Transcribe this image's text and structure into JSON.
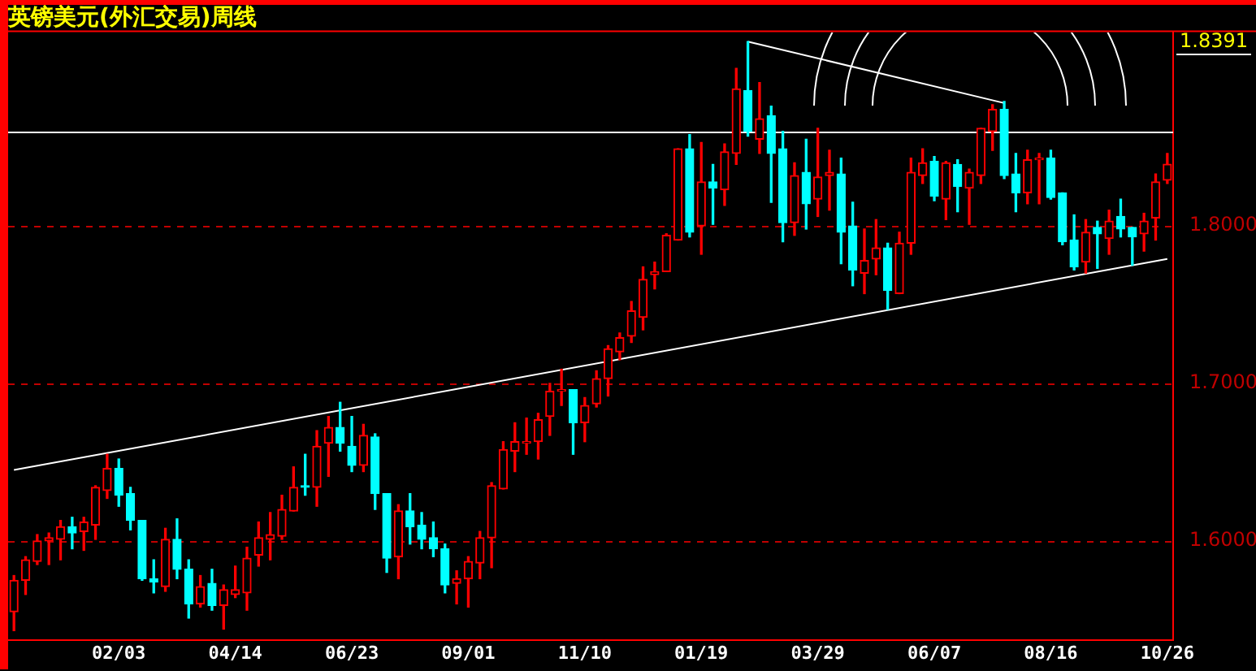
{
  "chart_data": {
    "type": "candlestick",
    "title": "英镑美元(外汇交易)周线",
    "categories": [
      null,
      null,
      null,
      null,
      null,
      null,
      null,
      null,
      null,
      "02/03",
      null,
      null,
      null,
      null,
      null,
      null,
      null,
      null,
      null,
      "04/14",
      null,
      null,
      null,
      null,
      null,
      null,
      null,
      null,
      null,
      "06/23",
      null,
      null,
      null,
      null,
      null,
      null,
      null,
      null,
      null,
      "09/01",
      null,
      null,
      null,
      null,
      null,
      null,
      null,
      null,
      null,
      "11/10",
      null,
      null,
      null,
      null,
      null,
      null,
      null,
      null,
      null,
      "01/19",
      null,
      null,
      null,
      null,
      null,
      null,
      null,
      null,
      null,
      "03/29",
      null,
      null,
      null,
      null,
      null,
      null,
      null,
      null,
      null,
      "06/07",
      null,
      null,
      null,
      null,
      null,
      null,
      null,
      null,
      null,
      "08/16",
      null,
      null,
      null,
      null,
      null,
      null,
      null,
      null,
      null,
      "10/26"
    ],
    "ohlc": [
      [
        1.555,
        1.578,
        1.543,
        1.575
      ],
      [
        1.575,
        1.59,
        1.566,
        1.588
      ],
      [
        1.587,
        1.604,
        1.585,
        1.6
      ],
      [
        1.6,
        1.605,
        1.585,
        1.602
      ],
      [
        1.601,
        1.613,
        1.588,
        1.609
      ],
      [
        1.609,
        1.615,
        1.595,
        1.605
      ],
      [
        1.606,
        1.615,
        1.594,
        1.612
      ],
      [
        1.61,
        1.635,
        1.601,
        1.634
      ],
      [
        1.632,
        1.655,
        1.627,
        1.646
      ],
      [
        1.646,
        1.652,
        1.622,
        1.629
      ],
      [
        1.63,
        1.634,
        1.607,
        1.613
      ],
      [
        1.613,
        1.613,
        1.575,
        1.576
      ],
      [
        1.576,
        1.588,
        1.567,
        1.574
      ],
      [
        1.571,
        1.608,
        1.568,
        1.601
      ],
      [
        1.601,
        1.614,
        1.576,
        1.582
      ],
      [
        1.582,
        1.588,
        1.551,
        1.56
      ],
      [
        1.56,
        1.578,
        1.558,
        1.571
      ],
      [
        1.573,
        1.582,
        1.556,
        1.559
      ],
      [
        1.559,
        1.572,
        1.544,
        1.569
      ],
      [
        1.566,
        1.584,
        1.564,
        1.569
      ],
      [
        1.567,
        1.596,
        1.556,
        1.589
      ],
      [
        1.591,
        1.612,
        1.584,
        1.602
      ],
      [
        1.601,
        1.618,
        1.588,
        1.604
      ],
      [
        1.603,
        1.629,
        1.601,
        1.62
      ],
      [
        1.619,
        1.647,
        1.619,
        1.634
      ],
      [
        1.635,
        1.655,
        1.629,
        1.634
      ],
      [
        1.634,
        1.67,
        1.622,
        1.66
      ],
      [
        1.662,
        1.679,
        1.641,
        1.672
      ],
      [
        1.672,
        1.688,
        1.657,
        1.662
      ],
      [
        1.66,
        1.679,
        1.644,
        1.648
      ],
      [
        1.648,
        1.674,
        1.644,
        1.667
      ],
      [
        1.666,
        1.668,
        1.62,
        1.63
      ],
      [
        1.63,
        1.63,
        1.58,
        1.589
      ],
      [
        1.59,
        1.623,
        1.576,
        1.619
      ],
      [
        1.619,
        1.63,
        1.598,
        1.609
      ],
      [
        1.61,
        1.618,
        1.595,
        1.601
      ],
      [
        1.602,
        1.612,
        1.59,
        1.595
      ],
      [
        1.595,
        1.598,
        1.567,
        1.572
      ],
      [
        1.573,
        1.581,
        1.56,
        1.576
      ],
      [
        1.576,
        1.59,
        1.558,
        1.587
      ],
      [
        1.586,
        1.606,
        1.576,
        1.602
      ],
      [
        1.602,
        1.637,
        1.583,
        1.635
      ],
      [
        1.633,
        1.663,
        1.633,
        1.658
      ],
      [
        1.657,
        1.675,
        1.644,
        1.663
      ],
      [
        1.662,
        1.678,
        1.655,
        1.663
      ],
      [
        1.663,
        1.681,
        1.652,
        1.677
      ],
      [
        1.679,
        1.7,
        1.667,
        1.695
      ],
      [
        1.695,
        1.709,
        1.686,
        1.696
      ],
      [
        1.696,
        1.696,
        1.655,
        1.675
      ],
      [
        1.675,
        1.691,
        1.663,
        1.686
      ],
      [
        1.687,
        1.708,
        1.685,
        1.703
      ],
      [
        1.703,
        1.724,
        1.692,
        1.722
      ],
      [
        1.72,
        1.732,
        1.715,
        1.729
      ],
      [
        1.73,
        1.752,
        1.726,
        1.746
      ],
      [
        1.742,
        1.774,
        1.734,
        1.766
      ],
      [
        1.769,
        1.777,
        1.76,
        1.771
      ],
      [
        1.771,
        1.795,
        1.771,
        1.794
      ],
      [
        1.791,
        1.849,
        1.791,
        1.849
      ],
      [
        1.849,
        1.858,
        1.793,
        1.796
      ],
      [
        1.8,
        1.853,
        1.782,
        1.828
      ],
      [
        1.828,
        1.839,
        1.801,
        1.824
      ],
      [
        1.823,
        1.852,
        1.813,
        1.847
      ],
      [
        1.846,
        1.9,
        1.839,
        1.887
      ],
      [
        1.886,
        1.917,
        1.857,
        1.86
      ],
      [
        1.855,
        1.891,
        1.846,
        1.868
      ],
      [
        1.87,
        1.876,
        1.815,
        1.846
      ],
      [
        1.849,
        1.86,
        1.79,
        1.802
      ],
      [
        1.802,
        1.84,
        1.794,
        1.832
      ],
      [
        1.834,
        1.855,
        1.798,
        1.814
      ],
      [
        1.817,
        1.862,
        1.806,
        1.831
      ],
      [
        1.832,
        1.848,
        1.81,
        1.834
      ],
      [
        1.833,
        1.843,
        1.776,
        1.796
      ],
      [
        1.8,
        1.815,
        1.762,
        1.772
      ],
      [
        1.77,
        1.798,
        1.757,
        1.778
      ],
      [
        1.779,
        1.804,
        1.769,
        1.786
      ],
      [
        1.786,
        1.789,
        1.747,
        1.759
      ],
      [
        1.757,
        1.796,
        1.757,
        1.789
      ],
      [
        1.789,
        1.843,
        1.782,
        1.834
      ],
      [
        1.832,
        1.849,
        1.827,
        1.84
      ],
      [
        1.841,
        1.844,
        1.816,
        1.819
      ],
      [
        1.817,
        1.841,
        1.804,
        1.84
      ],
      [
        1.839,
        1.842,
        1.809,
        1.825
      ],
      [
        1.824,
        1.836,
        1.801,
        1.834
      ],
      [
        1.832,
        1.862,
        1.827,
        1.862
      ],
      [
        1.86,
        1.877,
        1.848,
        1.874
      ],
      [
        1.874,
        1.879,
        1.83,
        1.832
      ],
      [
        1.833,
        1.846,
        1.809,
        1.821
      ],
      [
        1.821,
        1.848,
        1.814,
        1.842
      ],
      [
        1.842,
        1.846,
        1.814,
        1.843
      ],
      [
        1.843,
        1.848,
        1.817,
        1.818
      ],
      [
        1.821,
        1.821,
        1.788,
        1.79
      ],
      [
        1.791,
        1.807,
        1.772,
        1.774
      ],
      [
        1.777,
        1.804,
        1.77,
        1.796
      ],
      [
        1.799,
        1.803,
        1.773,
        1.795
      ],
      [
        1.792,
        1.81,
        1.782,
        1.803
      ],
      [
        1.806,
        1.817,
        1.793,
        1.798
      ],
      [
        1.799,
        1.799,
        1.775,
        1.793
      ],
      [
        1.795,
        1.808,
        1.784,
        1.803
      ],
      [
        1.805,
        1.833,
        1.791,
        1.828
      ],
      [
        1.829,
        1.846,
        1.827,
        1.8391
      ]
    ],
    "colors": [
      "#ff0000",
      "#ff0000",
      "#ff0000",
      "#ff0000",
      "#ff0000",
      "#00ffff",
      "#ff0000",
      "#ff0000",
      "#ff0000",
      "#00ffff",
      "#00ffff",
      "#00ffff",
      "#00ffff",
      "#ff0000",
      "#00ffff",
      "#00ffff",
      "#ff0000",
      "#00ffff",
      "#ff0000",
      "#ff0000",
      "#ff0000",
      "#ff0000",
      "#ff0000",
      "#ff0000",
      "#ff0000",
      "#00ffff",
      "#ff0000",
      "#ff0000",
      "#00ffff",
      "#00ffff",
      "#ff0000",
      "#00ffff",
      "#00ffff",
      "#ff0000",
      "#00ffff",
      "#00ffff",
      "#00ffff",
      "#00ffff",
      "#ff0000",
      "#ff0000",
      "#ff0000",
      "#ff0000",
      "#ff0000",
      "#ff0000",
      "#ff0000",
      "#ff0000",
      "#ff0000",
      "#ff0000",
      "#00ffff",
      "#ff0000",
      "#ff0000",
      "#ff0000",
      "#ff0000",
      "#ff0000",
      "#ff0000",
      "#ff0000",
      "#ff0000",
      "#ff0000",
      "#00ffff",
      "#ff0000",
      "#00ffff",
      "#ff0000",
      "#ff0000",
      "#00ffff",
      "#ff0000",
      "#00ffff",
      "#00ffff",
      "#ff0000",
      "#00ffff",
      "#ff0000",
      "#ff0000",
      "#00ffff",
      "#00ffff",
      "#ff0000",
      "#ff0000",
      "#00ffff",
      "#ff0000",
      "#ff0000",
      "#ff0000",
      "#00ffff",
      "#ff0000",
      "#00ffff",
      "#ff0000",
      "#ff0000",
      "#ff0000",
      "#00ffff",
      "#00ffff",
      "#ff0000",
      "#ff0000",
      "#00ffff",
      "#00ffff",
      "#00ffff",
      "#ff0000",
      "#00ffff",
      "#ff0000",
      "#00ffff",
      "#00ffff",
      "#ff0000",
      "#ff0000",
      "#ff0000"
    ],
    "series": [
      {
        "type": "line",
        "color": "#ffffff",
        "values": [
          1.645,
          null,
          null,
          null,
          null,
          null,
          null,
          null,
          null,
          null,
          null,
          null,
          null,
          null,
          null,
          null,
          null,
          null,
          null,
          null,
          null,
          null,
          null,
          null,
          null,
          null,
          null,
          null,
          null,
          null,
          null,
          null,
          null,
          null,
          null,
          null,
          null,
          null,
          null,
          null,
          null,
          null,
          null,
          null,
          null,
          null,
          null,
          null,
          null,
          null,
          null,
          null,
          null,
          null,
          null,
          null,
          null,
          null,
          null,
          null,
          null,
          null,
          null,
          null,
          null,
          null,
          null,
          null,
          null,
          null,
          null,
          null,
          null,
          null,
          null,
          null,
          null,
          null,
          null,
          null,
          null,
          null,
          null,
          null,
          null,
          null,
          null,
          null,
          null,
          null,
          null,
          null,
          null,
          null,
          null,
          null,
          null,
          null,
          null,
          1.779
        ]
      },
      {
        "type": "line",
        "color": "#ffffff",
        "values": [
          null,
          null,
          null,
          null,
          null,
          null,
          null,
          null,
          null,
          null,
          null,
          null,
          null,
          null,
          null,
          null,
          null,
          null,
          null,
          null,
          null,
          null,
          null,
          null,
          null,
          null,
          null,
          null,
          null,
          null,
          null,
          null,
          null,
          null,
          null,
          null,
          null,
          null,
          null,
          null,
          null,
          null,
          null,
          null,
          null,
          null,
          null,
          null,
          null,
          null,
          null,
          null,
          null,
          null,
          null,
          null,
          null,
          null,
          null,
          null,
          null,
          null,
          null,
          1.917,
          null,
          null,
          null,
          null,
          null,
          null,
          null,
          null,
          null,
          null,
          null,
          null,
          null,
          null,
          null,
          null,
          null,
          null,
          null,
          null,
          null,
          1.878,
          null,
          null,
          null,
          null,
          null,
          null,
          null,
          null,
          null,
          null,
          null,
          null,
          null,
          null
        ]
      }
    ],
    "ref_lines": [
      {
        "axis": "y",
        "value": 1.86,
        "color": "#ffffff"
      }
    ],
    "ylim": [
      1.537,
      1.923
    ],
    "yticks": [
      {
        "value": 1.6,
        "label": "1.6000"
      },
      {
        "value": 1.7,
        "label": "1.7000"
      },
      {
        "value": 1.8,
        "label": "1.8000"
      }
    ],
    "grid": "y",
    "legend": false,
    "annotations": [
      "1.8391"
    ]
  }
}
